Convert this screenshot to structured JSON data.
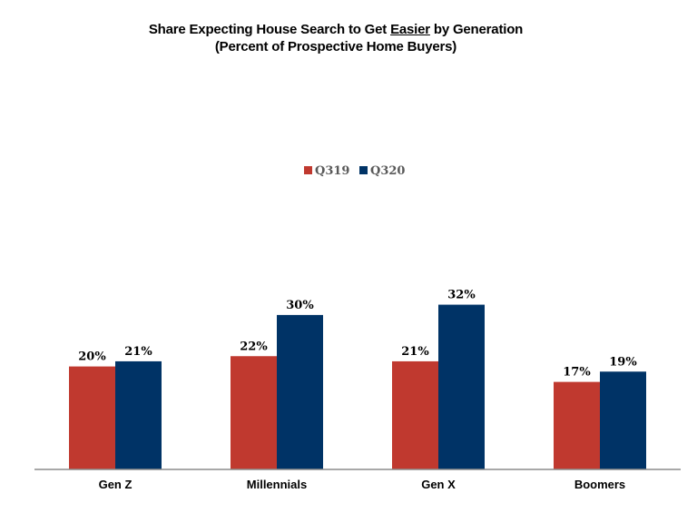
{
  "chart_data": {
    "type": "bar",
    "title_parts": {
      "before": "Share Expecting House Search to Get ",
      "emphasis": "Easier",
      "after": " by Generation"
    },
    "subtitle": "(Percent of Prospective Home Buyers)",
    "categories": [
      "Gen Z",
      "Millennials",
      "Gen X",
      "Boomers"
    ],
    "series": [
      {
        "name": "Q319",
        "color": "#c0392f",
        "values": [
          20,
          22,
          21,
          17
        ],
        "labels": [
          "20%",
          "22%",
          "21%",
          "17%"
        ]
      },
      {
        "name": "Q320",
        "color": "#003366",
        "values": [
          21,
          30,
          32,
          19
        ],
        "labels": [
          "21%",
          "30%",
          "32%",
          "19%"
        ]
      }
    ],
    "ylim": [
      0,
      34
    ],
    "grid": false,
    "legend_position": "top-center",
    "xlabel": "",
    "ylabel": ""
  }
}
